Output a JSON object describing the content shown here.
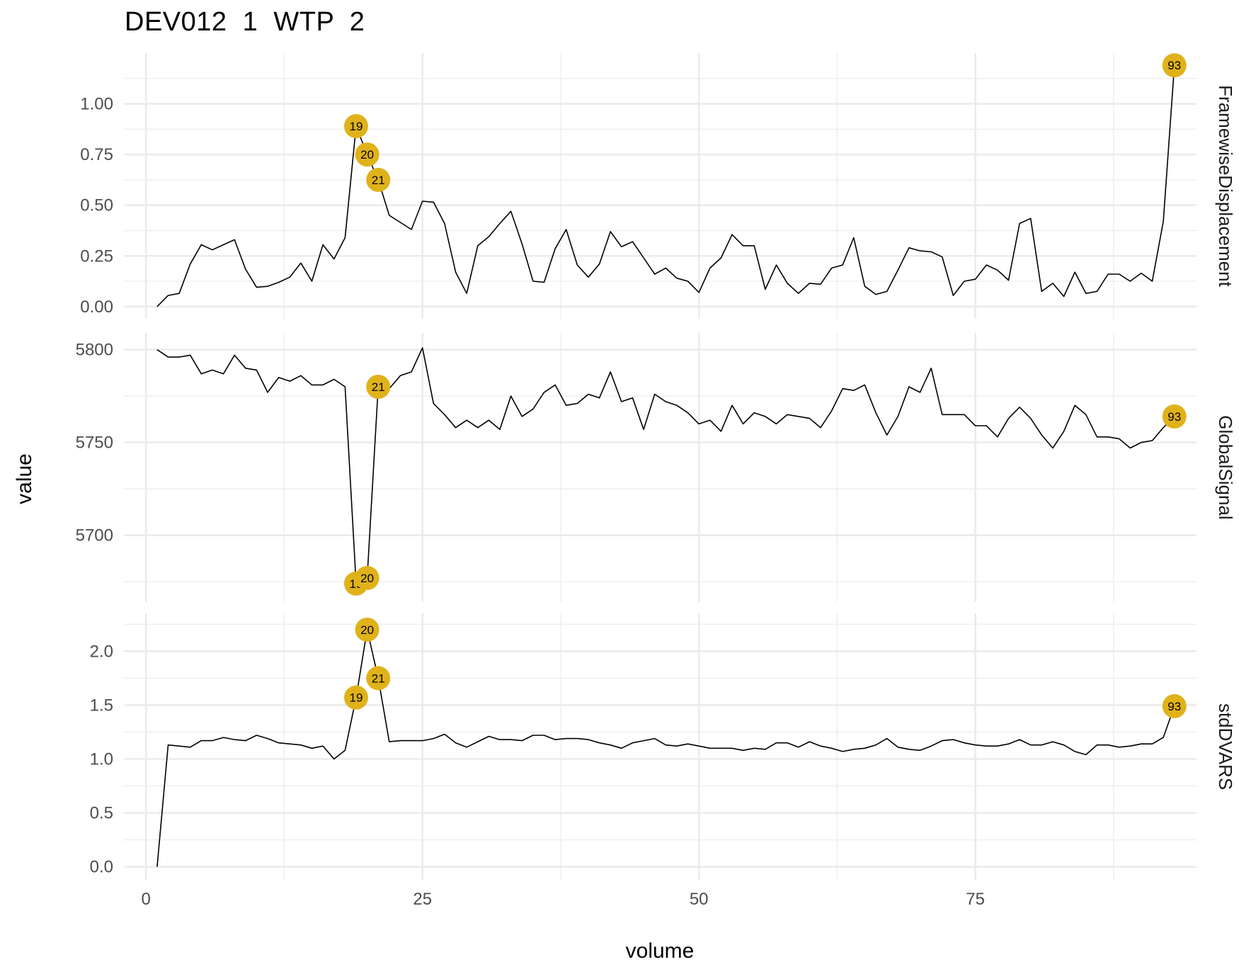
{
  "chart_data": {
    "type": "line",
    "title": "DEV012  1  WTP  2",
    "xlabel": "volume",
    "ylabel": "value",
    "xlim": [
      -2,
      95
    ],
    "x_ticks": [
      0,
      25,
      50,
      75
    ],
    "x_tick_labels": [
      "0",
      "25",
      "50",
      "75"
    ],
    "grid": true,
    "facets": [
      {
        "name": "FramewiseDisplacement",
        "ylim": [
          -0.06,
          1.25
        ],
        "y_ticks": [
          0,
          0.25,
          0.5,
          0.75,
          1.0
        ],
        "y_tick_labels": [
          "0.00",
          "0.25",
          "0.50",
          "0.75",
          "1.00"
        ],
        "x": [
          1,
          2,
          3,
          4,
          5,
          6,
          7,
          8,
          9,
          10,
          11,
          12,
          13,
          14,
          15,
          16,
          17,
          18,
          19,
          20,
          21,
          22,
          23,
          24,
          25,
          26,
          27,
          28,
          29,
          30,
          31,
          32,
          33,
          34,
          35,
          36,
          37,
          38,
          39,
          40,
          41,
          42,
          43,
          44,
          45,
          46,
          47,
          48,
          49,
          50,
          51,
          52,
          53,
          54,
          55,
          56,
          57,
          58,
          59,
          60,
          61,
          62,
          63,
          64,
          65,
          66,
          67,
          68,
          69,
          70,
          71,
          72,
          73,
          74,
          75,
          76,
          77,
          78,
          79,
          80,
          81,
          82,
          83,
          84,
          85,
          86,
          87,
          88,
          89,
          90,
          91,
          92,
          93
        ],
        "values": [
          0.0,
          0.055,
          0.065,
          0.21,
          0.305,
          0.28,
          0.305,
          0.33,
          0.185,
          0.095,
          0.1,
          0.12,
          0.145,
          0.215,
          0.125,
          0.305,
          0.235,
          0.34,
          0.89,
          0.75,
          0.625,
          0.45,
          0.415,
          0.38,
          0.52,
          0.515,
          0.41,
          0.17,
          0.065,
          0.3,
          0.345,
          0.41,
          0.47,
          0.31,
          0.125,
          0.12,
          0.285,
          0.38,
          0.205,
          0.145,
          0.21,
          0.37,
          0.295,
          0.32,
          0.24,
          0.16,
          0.19,
          0.14,
          0.125,
          0.07,
          0.19,
          0.24,
          0.355,
          0.3,
          0.3,
          0.085,
          0.205,
          0.115,
          0.065,
          0.115,
          0.11,
          0.19,
          0.205,
          0.34,
          0.1,
          0.06,
          0.075,
          0.18,
          0.29,
          0.275,
          0.27,
          0.245,
          0.055,
          0.125,
          0.135,
          0.205,
          0.18,
          0.13,
          0.41,
          0.435,
          0.075,
          0.115,
          0.05,
          0.17,
          0.065,
          0.075,
          0.16,
          0.16,
          0.125,
          0.165,
          0.125,
          0.42,
          1.19
        ],
        "highlighted": [
          {
            "x": 19,
            "label": "19"
          },
          {
            "x": 20,
            "label": "20"
          },
          {
            "x": 21,
            "label": "21"
          },
          {
            "x": 93,
            "label": "93"
          }
        ]
      },
      {
        "name": "GlobalSignal",
        "ylim": [
          5664,
          5809
        ],
        "y_ticks": [
          5700,
          5750,
          5800
        ],
        "y_tick_labels": [
          "5700",
          "5750",
          "5800"
        ],
        "x": [
          1,
          2,
          3,
          4,
          5,
          6,
          7,
          8,
          9,
          10,
          11,
          12,
          13,
          14,
          15,
          16,
          17,
          18,
          19,
          20,
          21,
          22,
          23,
          24,
          25,
          26,
          27,
          28,
          29,
          30,
          31,
          32,
          33,
          34,
          35,
          36,
          37,
          38,
          39,
          40,
          41,
          42,
          43,
          44,
          45,
          46,
          47,
          48,
          49,
          50,
          51,
          52,
          53,
          54,
          55,
          56,
          57,
          58,
          59,
          60,
          61,
          62,
          63,
          64,
          65,
          66,
          67,
          68,
          69,
          70,
          71,
          72,
          73,
          74,
          75,
          76,
          77,
          78,
          79,
          80,
          81,
          82,
          83,
          84,
          85,
          86,
          87,
          88,
          89,
          90,
          91,
          92,
          93
        ],
        "values": [
          5800,
          5796,
          5796,
          5797,
          5787,
          5789,
          5787,
          5797,
          5790,
          5789,
          5777,
          5785,
          5783,
          5786,
          5781,
          5781,
          5784,
          5780,
          5674,
          5677,
          5780,
          5779,
          5786,
          5788,
          5801,
          5771,
          5765,
          5758,
          5762,
          5758,
          5762,
          5757,
          5775,
          5764,
          5768,
          5777,
          5781,
          5770,
          5771,
          5776,
          5774,
          5788,
          5772,
          5774,
          5757,
          5776,
          5772,
          5770,
          5766,
          5760,
          5762,
          5756,
          5770,
          5760,
          5766,
          5764,
          5760,
          5765,
          5764,
          5763,
          5758,
          5767,
          5779,
          5778,
          5781,
          5766,
          5754,
          5764,
          5780,
          5777,
          5790,
          5765,
          5765,
          5765,
          5759,
          5759,
          5753,
          5763,
          5769,
          5763,
          5754,
          5747,
          5756,
          5770,
          5765,
          5753,
          5753,
          5752,
          5747,
          5750,
          5751,
          5758,
          5764
        ],
        "highlighted": [
          {
            "x": 19,
            "label": "19"
          },
          {
            "x": 20,
            "label": "20"
          },
          {
            "x": 21,
            "label": "21"
          },
          {
            "x": 93,
            "label": "93"
          }
        ]
      },
      {
        "name": "stdDVARS",
        "ylim": [
          -0.12,
          2.35
        ],
        "y_ticks": [
          0,
          0.5,
          1.0,
          1.5,
          2.0
        ],
        "y_tick_labels": [
          "0.0",
          "0.5",
          "1.0",
          "1.5",
          "2.0"
        ],
        "x": [
          1,
          2,
          3,
          4,
          5,
          6,
          7,
          8,
          9,
          10,
          11,
          12,
          13,
          14,
          15,
          16,
          17,
          18,
          19,
          20,
          21,
          22,
          23,
          24,
          25,
          26,
          27,
          28,
          29,
          30,
          31,
          32,
          33,
          34,
          35,
          36,
          37,
          38,
          39,
          40,
          41,
          42,
          43,
          44,
          45,
          46,
          47,
          48,
          49,
          50,
          51,
          52,
          53,
          54,
          55,
          56,
          57,
          58,
          59,
          60,
          61,
          62,
          63,
          64,
          65,
          66,
          67,
          68,
          69,
          70,
          71,
          72,
          73,
          74,
          75,
          76,
          77,
          78,
          79,
          80,
          81,
          82,
          83,
          84,
          85,
          86,
          87,
          88,
          89,
          90,
          91,
          92,
          93
        ],
        "values": [
          0.0,
          1.13,
          1.12,
          1.11,
          1.17,
          1.17,
          1.2,
          1.18,
          1.17,
          1.22,
          1.19,
          1.15,
          1.14,
          1.13,
          1.1,
          1.12,
          1.0,
          1.08,
          1.57,
          2.2,
          1.75,
          1.16,
          1.17,
          1.17,
          1.17,
          1.19,
          1.23,
          1.15,
          1.11,
          1.16,
          1.21,
          1.18,
          1.18,
          1.17,
          1.22,
          1.22,
          1.18,
          1.19,
          1.19,
          1.18,
          1.15,
          1.13,
          1.1,
          1.15,
          1.17,
          1.19,
          1.13,
          1.12,
          1.14,
          1.12,
          1.1,
          1.1,
          1.1,
          1.08,
          1.1,
          1.09,
          1.15,
          1.15,
          1.11,
          1.16,
          1.12,
          1.1,
          1.07,
          1.09,
          1.1,
          1.13,
          1.19,
          1.11,
          1.09,
          1.08,
          1.12,
          1.17,
          1.18,
          1.15,
          1.13,
          1.12,
          1.12,
          1.14,
          1.18,
          1.13,
          1.13,
          1.16,
          1.13,
          1.07,
          1.04,
          1.13,
          1.13,
          1.11,
          1.12,
          1.14,
          1.14,
          1.2,
          1.49
        ],
        "highlighted": [
          {
            "x": 19,
            "label": "19"
          },
          {
            "x": 20,
            "label": "20"
          },
          {
            "x": 21,
            "label": "21"
          },
          {
            "x": 93,
            "label": "93"
          }
        ]
      }
    ],
    "highlight_color": "#e0b21a",
    "line_color": "#000000",
    "grid_color": "#ebebeb"
  }
}
